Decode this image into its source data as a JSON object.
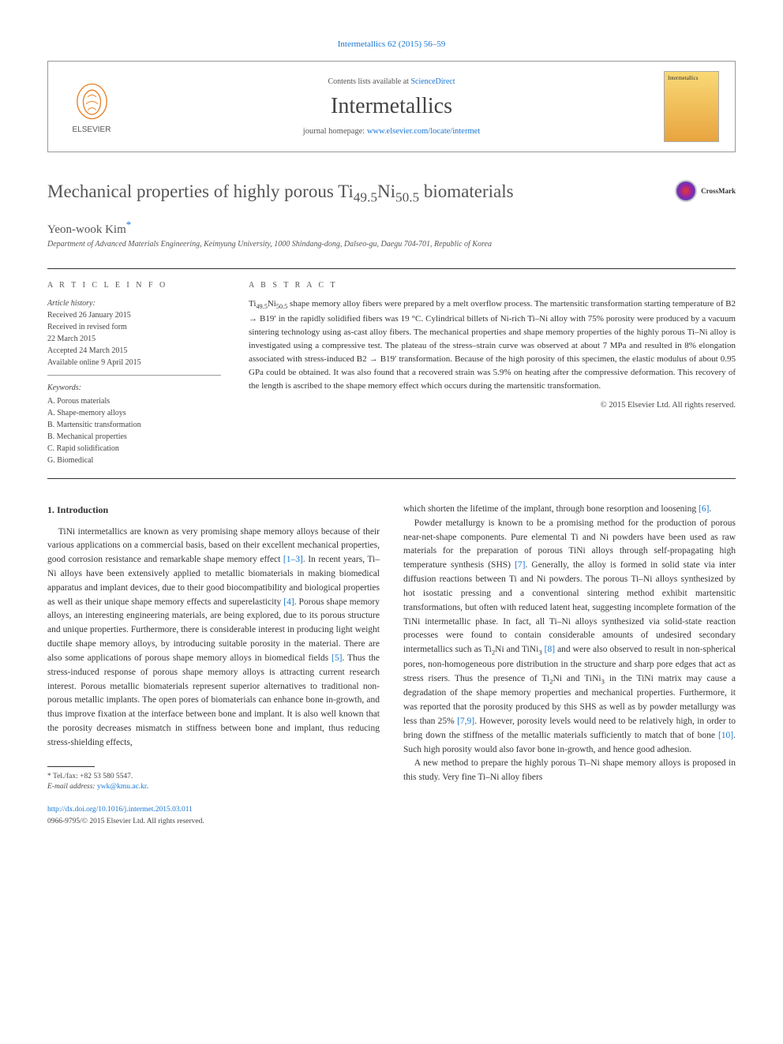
{
  "top_cite": "Intermetallics 62 (2015) 56–59",
  "header": {
    "contents_prefix": "Contents lists available at ",
    "contents_link": "ScienceDirect",
    "journal_name": "Intermetallics",
    "homepage_prefix": "journal homepage: ",
    "homepage_link": "www.elsevier.com/locate/intermet",
    "publisher": "ELSEVIER"
  },
  "crossmark": "CrossMark",
  "article": {
    "title_html": "Mechanical properties of highly porous Ti<sub>49.5</sub>Ni<sub>50.5</sub> biomaterials",
    "author": "Yeon-wook Kim",
    "affiliation": "Department of Advanced Materials Engineering, Keimyung University, 1000 Shindang-dong, Dalseo-gu, Daegu 704-701, Republic of Korea"
  },
  "info": {
    "heading": "A R T I C L E   I N F O",
    "history_label": "Article history:",
    "history": [
      "Received 26 January 2015",
      "Received in revised form",
      "22 March 2015",
      "Accepted 24 March 2015",
      "Available online 9 April 2015"
    ],
    "keywords_label": "Keywords:",
    "keywords": [
      "A. Porous materials",
      "A. Shape-memory alloys",
      "B. Martensitic transformation",
      "B. Mechanical properties",
      "C. Rapid solidification",
      "G. Biomedical"
    ]
  },
  "abstract": {
    "heading": "A B S T R A C T",
    "text_html": "Ti<sub>49.5</sub>Ni<sub>50.5</sub> shape memory alloy fibers were prepared by a melt overflow process. The martensitic transformation starting temperature of B2 → B19′ in the rapidly solidified fibers was 19 °C. Cylindrical billets of Ni-rich Ti–Ni alloy with 75% porosity were produced by a vacuum sintering technology using as-cast alloy fibers. The mechanical properties and shape memory properties of the highly porous Ti–Ni alloy is investigated using a compressive test. The plateau of the stress–strain curve was observed at about 7 MPa and resulted in 8% elongation associated with stress-induced B2 → B19′ transformation. Because of the high porosity of this specimen, the elastic modulus of about 0.95 GPa could be obtained. It was also found that a recovered strain was 5.9% on heating after the compressive deformation. This recovery of the length is ascribed to the shape memory effect which occurs during the martensitic transformation.",
    "copyright": "© 2015 Elsevier Ltd. All rights reserved."
  },
  "body": {
    "section_heading": "1. Introduction",
    "col1_p1_html": "TiNi intermetallics are known as very promising shape memory alloys because of their various applications on a commercial basis, based on their excellent mechanical properties, good corrosion resistance and remarkable shape memory effect <span class=\"cite-link\">[1–3]</span>. In recent years, Ti–Ni alloys have been extensively applied to metallic biomaterials in making biomedical apparatus and implant devices, due to their good biocompatibility and biological properties as well as their unique shape memory effects and superelasticity <span class=\"cite-link\">[4]</span>. Porous shape memory alloys, an interesting engineering materials, are being explored, due to its porous structure and unique properties. Furthermore, there is considerable interest in producing light weight ductile shape memory alloys, by introducing suitable porosity in the material. There are also some applications of porous shape memory alloys in biomedical fields <span class=\"cite-link\">[5]</span>. Thus the stress-induced response of porous shape memory alloys is attracting current research interest. Porous metallic biomaterials represent superior alternatives to traditional non-porous metallic implants. The open pores of biomaterials can enhance bone in-growth, and thus improve fixation at the interface between bone and implant. It is also well known that the porosity decreases mismatch in stiffness between bone and implant, thus reducing stress-shielding effects,",
    "col2_p1_html": "which shorten the lifetime of the implant, through bone resorption and loosening <span class=\"cite-link\">[6]</span>.",
    "col2_p2_html": "Powder metallurgy is known to be a promising method for the production of porous near-net-shape components. Pure elemental Ti and Ni powders have been used as raw materials for the preparation of porous TiNi alloys through self-propagating high temperature synthesis (SHS) <span class=\"cite-link\">[7]</span>. Generally, the alloy is formed in solid state via inter diffusion reactions between Ti and Ni powders. The porous Ti–Ni alloys synthesized by hot isostatic pressing and a conventional sintering method exhibit martensitic transformations, but often with reduced latent heat, suggesting incomplete formation of the TiNi intermetallic phase. In fact, all Ti–Ni alloys synthesized via solid-state reaction processes were found to contain considerable amounts of undesired secondary intermetallics such as Ti<sub>2</sub>Ni and TiNi<sub>3</sub> <span class=\"cite-link\">[8]</span> and were also observed to result in non-spherical pores, non-homogeneous pore distribution in the structure and sharp pore edges that act as stress risers. Thus the presence of Ti<sub>2</sub>Ni and TiNi<sub>3</sub> in the TiNi matrix may cause a degradation of the shape memory properties and mechanical properties. Furthermore, it was reported that the porosity produced by this SHS as well as by powder metallurgy was less than 25% <span class=\"cite-link\">[7,9]</span>. However, porosity levels would need to be relatively high, in order to bring down the stiffness of the metallic materials sufficiently to match that of bone <span class=\"cite-link\">[10]</span>. Such high porosity would also favor bone in-growth, and hence good adhesion.",
    "col2_p3_html": "A new method to prepare the highly porous Ti–Ni shape memory alloys is proposed in this study. Very fine Ti–Ni alloy fibers"
  },
  "footnote": {
    "tel_label": "* Tel./fax: ",
    "tel": "+82 53 580 5547.",
    "email_label": "E-mail address: ",
    "email": "ywk@kmu.ac.kr"
  },
  "doi": {
    "link": "http://dx.doi.org/10.1016/j.intermet.2015.03.011",
    "issn": "0966-9795/© 2015 Elsevier Ltd. All rights reserved."
  },
  "colors": {
    "link": "#1976d2",
    "text": "#333333",
    "muted": "#555555",
    "border": "#999999"
  }
}
